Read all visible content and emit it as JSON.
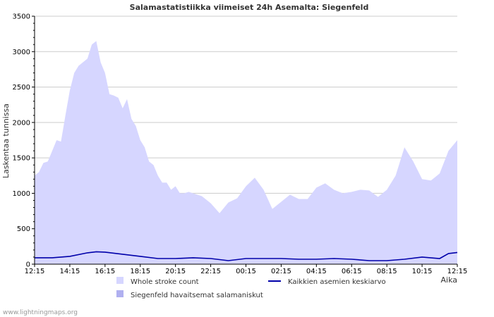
{
  "chart_data": {
    "type": "area",
    "title": "Salamastatistiikka viimeiset 24h Asemalta: Siegenfeld",
    "ylabel": "Laskentaa tunnissa",
    "xlabel": "Aika",
    "ylim": [
      0,
      3500
    ],
    "yticks": [
      0,
      500,
      1000,
      1500,
      2000,
      2500,
      3000,
      3500
    ],
    "xtick_labels": [
      "12:15",
      "14:15",
      "16:15",
      "18:15",
      "20:15",
      "22:15",
      "00:15",
      "02:15",
      "04:15",
      "06:15",
      "08:15",
      "10:15",
      "12:15"
    ],
    "x_range_hours": [
      0,
      24
    ],
    "grid": true,
    "colors": {
      "whole": "#d6d6ff",
      "station": "#b0b0f0",
      "average": "#0000aa",
      "grid": "#cccccc"
    },
    "legend": {
      "whole": "Whole stroke count",
      "station": "Siegenfeld havaitsemat salamaniskut",
      "average": "Kaikkien asemien keskiarvo"
    },
    "series": [
      {
        "name": "Whole stroke count",
        "x": [
          0,
          0.25,
          0.5,
          0.75,
          1,
          1.25,
          1.5,
          1.75,
          2,
          2.25,
          2.5,
          2.75,
          3,
          3.25,
          3.5,
          3.75,
          4,
          4.25,
          4.5,
          4.75,
          5,
          5.25,
          5.5,
          5.75,
          6,
          6.25,
          6.5,
          6.75,
          7,
          7.25,
          7.5,
          7.75,
          8,
          8.25,
          8.5,
          8.75,
          9,
          9.5,
          10,
          10.5,
          11,
          11.5,
          12,
          12.5,
          13,
          13.5,
          14,
          14.5,
          15,
          15.5,
          16,
          16.5,
          17,
          17.5,
          18,
          18.5,
          19,
          19.5,
          20,
          20.5,
          21,
          21.5,
          22,
          22.5,
          23,
          23.5,
          24
        ],
        "values": [
          1250,
          1300,
          1430,
          1450,
          1600,
          1750,
          1730,
          2100,
          2450,
          2700,
          2800,
          2850,
          2900,
          3100,
          3150,
          2850,
          2700,
          2400,
          2380,
          2350,
          2200,
          2330,
          2050,
          1950,
          1750,
          1650,
          1450,
          1400,
          1250,
          1150,
          1150,
          1050,
          1100,
          1000,
          1000,
          1020,
          1000,
          960,
          860,
          720,
          870,
          930,
          1100,
          1220,
          1050,
          780,
          880,
          980,
          920,
          920,
          1080,
          1140,
          1050,
          1000,
          1020,
          1050,
          1040,
          950,
          1050,
          1250,
          1650,
          1450,
          1200,
          1180,
          1280,
          1600,
          1750
        ]
      },
      {
        "name": "Kaikkien asemien keskiarvo",
        "x": [
          0,
          1,
          2,
          3,
          3.5,
          4,
          5,
          6,
          7,
          8,
          9,
          10,
          11,
          12,
          13,
          14,
          15,
          16,
          17,
          18,
          19,
          20,
          21,
          22,
          23,
          23.5,
          24
        ],
        "values": [
          90,
          90,
          110,
          160,
          175,
          170,
          140,
          110,
          80,
          80,
          90,
          80,
          50,
          80,
          80,
          80,
          70,
          70,
          80,
          70,
          50,
          50,
          70,
          100,
          80,
          150,
          165
        ]
      }
    ]
  },
  "credit": "www.lightningmaps.org"
}
